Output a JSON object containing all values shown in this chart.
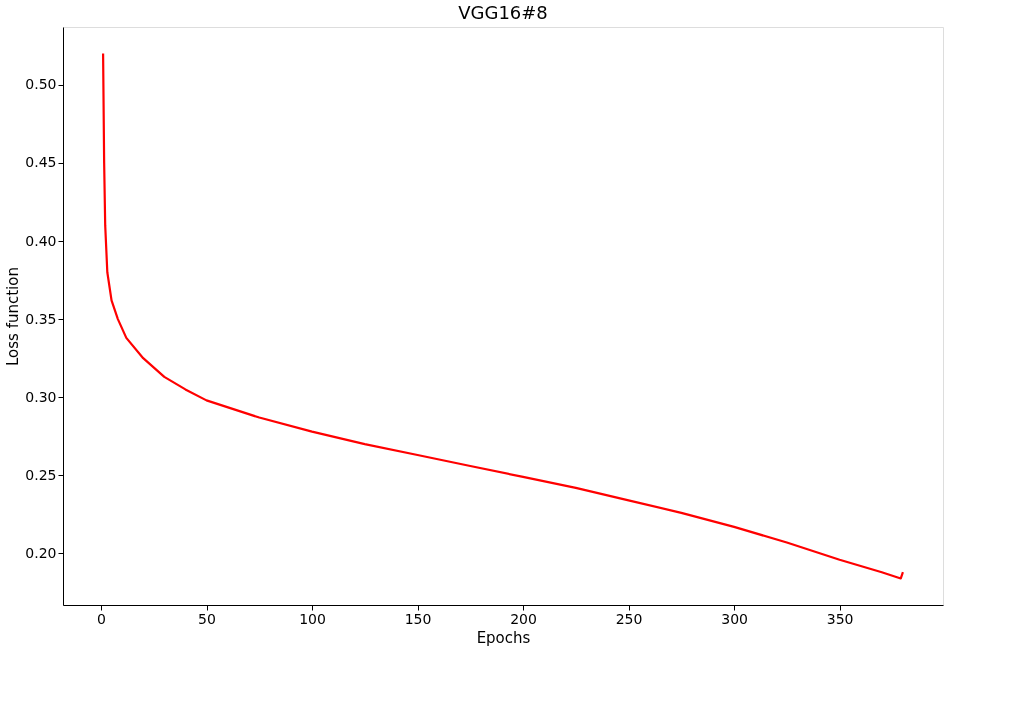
{
  "chart_data": {
    "type": "line",
    "title": "VGG16#8",
    "xlabel": "Epochs",
    "ylabel": "Loss function",
    "x": [
      1,
      1.5,
      2,
      3,
      5,
      8,
      12,
      20,
      30,
      40,
      50,
      75,
      100,
      125,
      150,
      175,
      200,
      225,
      250,
      275,
      300,
      325,
      350,
      370,
      379,
      380
    ],
    "series": [
      {
        "color": "#ff0000",
        "values": [
          0.52,
          0.45,
          0.41,
          0.38,
          0.362,
          0.35,
          0.338,
          0.325,
          0.313,
          0.305,
          0.298,
          0.287,
          0.278,
          0.27,
          0.263,
          0.256,
          0.249,
          0.242,
          0.234,
          0.226,
          0.217,
          0.207,
          0.196,
          0.188,
          0.184,
          0.188
        ]
      }
    ],
    "xlim": [
      -18,
      399
    ],
    "xticks": [
      0,
      50,
      100,
      150,
      200,
      250,
      300,
      350
    ],
    "ylim": [
      0.167,
      0.537
    ],
    "yticks": [
      {
        "value": 0.2,
        "label": "0.20"
      },
      {
        "value": 0.25,
        "label": "0.25"
      },
      {
        "value": 0.3,
        "label": "0.30"
      },
      {
        "value": 0.35,
        "label": "0.35"
      },
      {
        "value": 0.4,
        "label": "0.40"
      },
      {
        "value": 0.45,
        "label": "0.45"
      },
      {
        "value": 0.5,
        "label": "0.50"
      }
    ],
    "grid": false,
    "marker": "none",
    "line_style": "solid"
  }
}
